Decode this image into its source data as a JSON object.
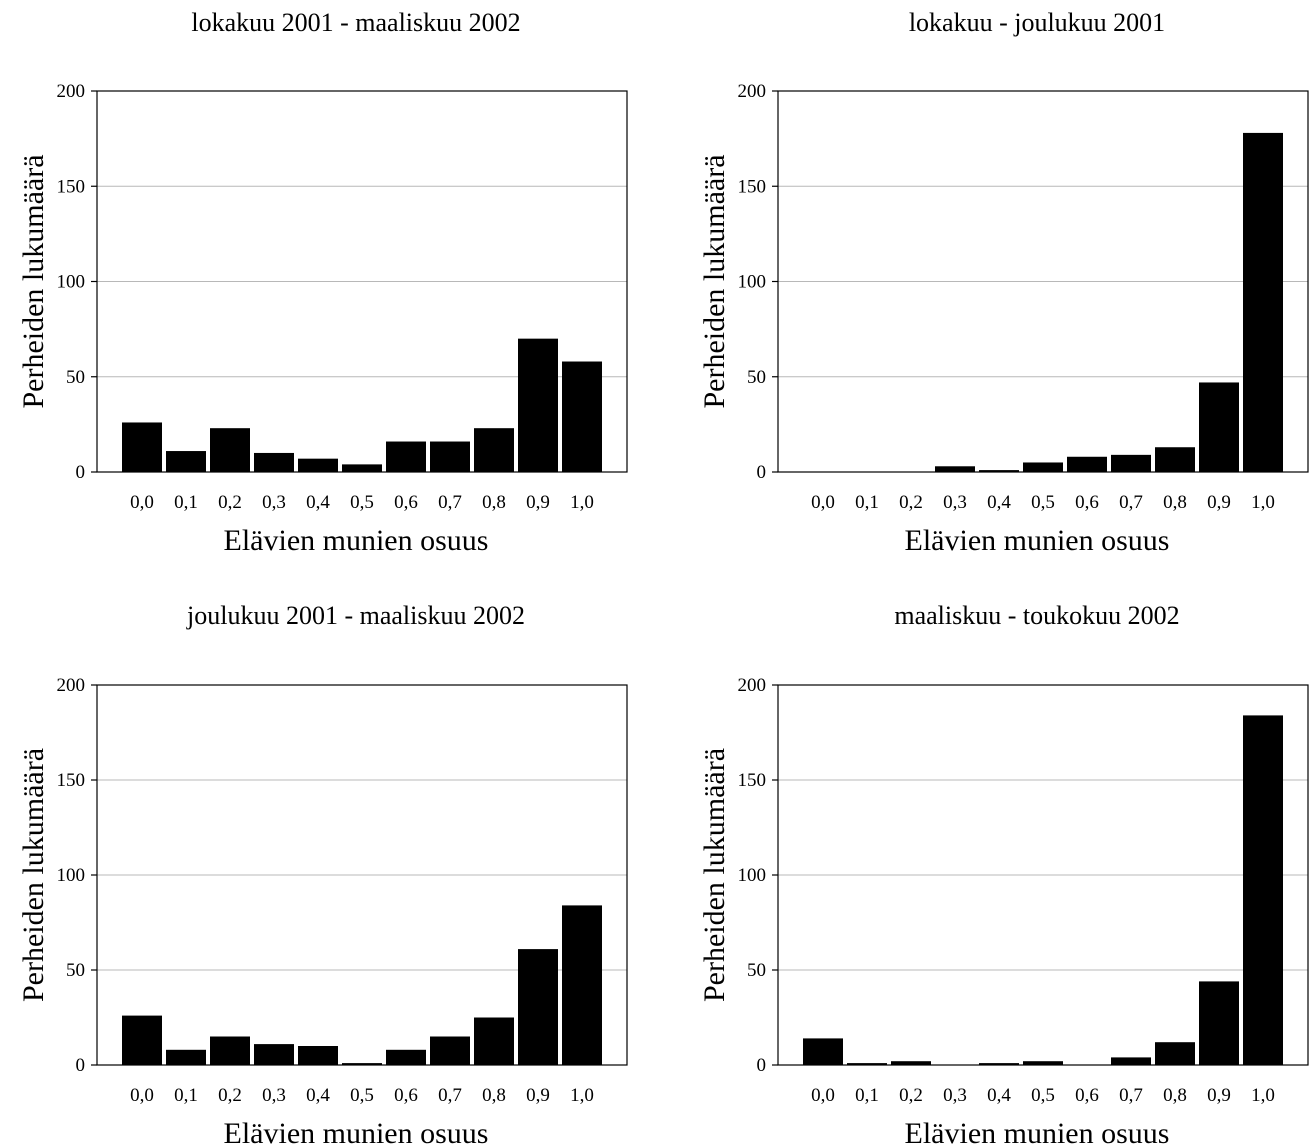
{
  "chart_data": [
    {
      "type": "bar",
      "title": "lokakuu 2001 - maaliskuu 2002",
      "xlabel": "Elävien munien osuus",
      "ylabel": "Perheiden lukumäärä",
      "categories": [
        "0,0",
        "0,1",
        "0,2",
        "0,3",
        "0,4",
        "0,5",
        "0,6",
        "0,7",
        "0,8",
        "0,9",
        "1,0"
      ],
      "values": [
        26,
        11,
        23,
        10,
        7,
        4,
        16,
        16,
        23,
        70,
        58
      ],
      "ylim": [
        0,
        200
      ],
      "yticks": [
        "0",
        "50",
        "100",
        "150",
        "200"
      ],
      "grid": true,
      "bar_color": "#000000"
    },
    {
      "type": "bar",
      "title": "lokakuu - joulukuu 2001",
      "xlabel": "Elävien munien osuus",
      "ylabel": "Perheiden lukumäärä",
      "categories": [
        "0,0",
        "0,1",
        "0,2",
        "0,3",
        "0,4",
        "0,5",
        "0,6",
        "0,7",
        "0,8",
        "0,9",
        "1,0"
      ],
      "values": [
        0,
        0,
        0,
        3,
        1,
        5,
        8,
        9,
        13,
        47,
        178
      ],
      "ylim": [
        0,
        200
      ],
      "yticks": [
        "0",
        "50",
        "100",
        "150",
        "200"
      ],
      "grid": true,
      "bar_color": "#000000"
    },
    {
      "type": "bar",
      "title": "joulukuu 2001 - maaliskuu 2002",
      "xlabel": "Elävien munien osuus",
      "ylabel": "Perheiden lukumäärä",
      "categories": [
        "0,0",
        "0,1",
        "0,2",
        "0,3",
        "0,4",
        "0,5",
        "0,6",
        "0,7",
        "0,8",
        "0,9",
        "1,0"
      ],
      "values": [
        26,
        8,
        15,
        11,
        10,
        1,
        8,
        15,
        25,
        61,
        84
      ],
      "ylim": [
        0,
        200
      ],
      "yticks": [
        "0",
        "50",
        "100",
        "150",
        "200"
      ],
      "grid": true,
      "bar_color": "#000000"
    },
    {
      "type": "bar",
      "title": "maaliskuu - toukokuu 2002",
      "xlabel": "Elävien munien osuus",
      "ylabel": "Perheiden lukumäärä",
      "categories": [
        "0,0",
        "0,1",
        "0,2",
        "0,3",
        "0,4",
        "0,5",
        "0,6",
        "0,7",
        "0,8",
        "0,9",
        "1,0"
      ],
      "values": [
        14,
        1,
        2,
        0,
        1,
        2,
        0,
        4,
        12,
        44,
        184
      ],
      "ylim": [
        0,
        200
      ],
      "yticks": [
        "0",
        "50",
        "100",
        "150",
        "200"
      ],
      "grid": true,
      "bar_color": "#000000"
    }
  ]
}
